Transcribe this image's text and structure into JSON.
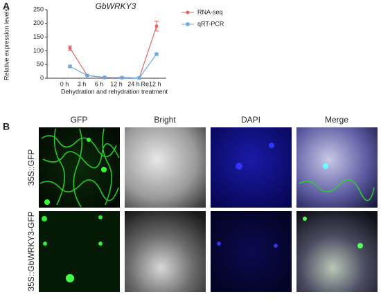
{
  "chart_data": {
    "type": "line",
    "panel_label": "A",
    "title": "GbWRKY3",
    "x_label": "Dehydration and rehydration treatment",
    "y_label": "Relative expression levels",
    "categories": [
      "0 h",
      "3 h",
      "6 h",
      "12 h",
      "24 h",
      "Re12 h"
    ],
    "series": [
      {
        "name": "RNA-seq",
        "color": "#e06666",
        "marker": "circle",
        "values": [
          110,
          10,
          2,
          2,
          1,
          190
        ],
        "errors": [
          8,
          1,
          1,
          1,
          0.5,
          18
        ]
      },
      {
        "name": "qRT-PCR",
        "color": "#6fa8dc",
        "marker": "square",
        "values": [
          43,
          10,
          3,
          2,
          1,
          88
        ],
        "errors": [
          4,
          1,
          1,
          0.5,
          0.5,
          4
        ]
      }
    ],
    "ylim": [
      0,
      250
    ],
    "yticks": [
      0,
      50,
      100,
      150,
      200,
      250
    ],
    "legend": "upper right"
  },
  "figure_b": {
    "panel_label": "B",
    "columns": [
      "GFP",
      "Bright",
      "DAPI",
      "Merge"
    ],
    "rows": [
      "35S::GFP",
      "35S::GbWRKY3-GFP"
    ]
  }
}
